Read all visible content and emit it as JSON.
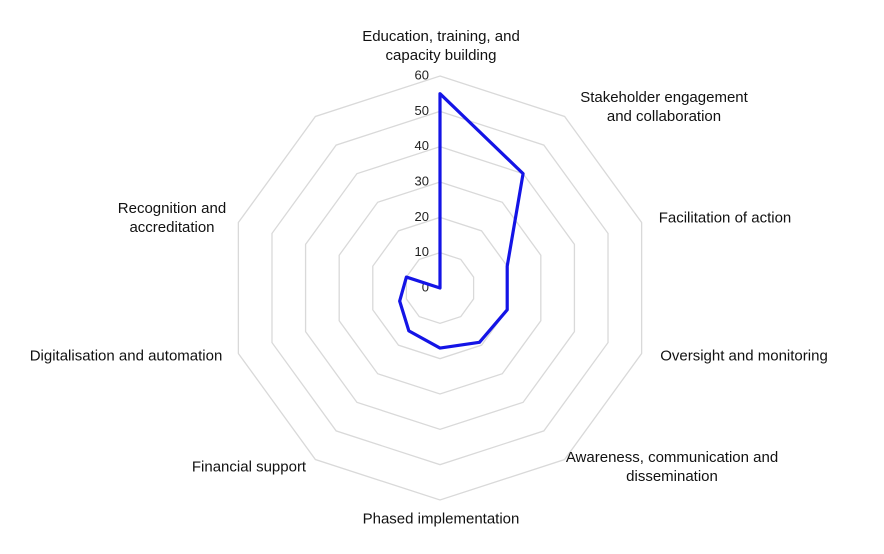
{
  "chart_data": {
    "type": "radar",
    "categories": [
      "Education, training, and capacity building",
      "Stakeholder engagement and collaboration",
      "Facilitation of action",
      "Oversight and monitoring",
      "Awareness, communication and dissemination",
      "Phased implementation",
      "Financial support",
      "Digitalisation and automation",
      "Recognition and accreditation",
      null
    ],
    "values": [
      55,
      40,
      20,
      20,
      19,
      17,
      15,
      12,
      10,
      0
    ],
    "color": "#1414e6",
    "ylim": [
      0,
      60
    ],
    "yticks": [
      0,
      10,
      20,
      30,
      40,
      50,
      60
    ],
    "grid": true
  }
}
